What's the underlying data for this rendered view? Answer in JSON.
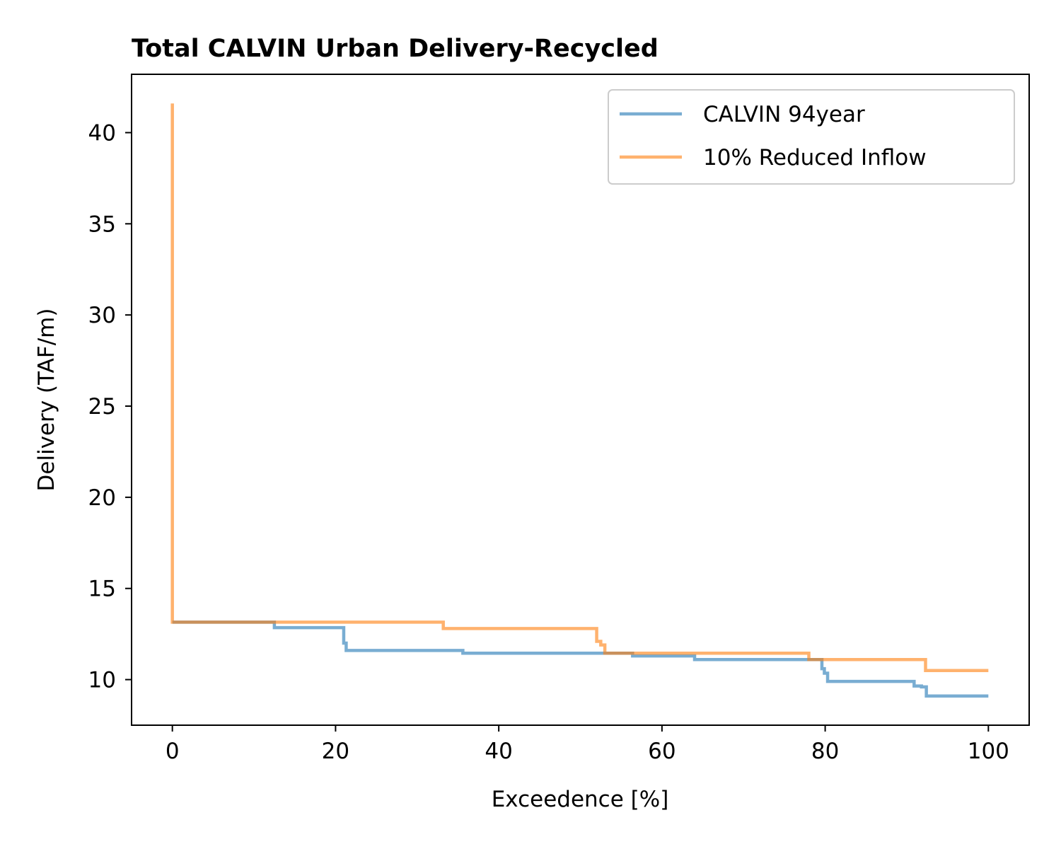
{
  "chart_data": {
    "type": "line",
    "step": true,
    "title": "Total CALVIN Urban Delivery-Recycled",
    "xlabel": "Exceedence [%]",
    "ylabel": "Delivery (TAF/m)",
    "xlim": [
      -5,
      105
    ],
    "ylim": [
      7.5,
      43.2
    ],
    "xticks": [
      0,
      20,
      40,
      60,
      80,
      100
    ],
    "yticks": [
      10,
      15,
      20,
      25,
      30,
      35,
      40
    ],
    "grid": false,
    "legend_position": "top-right",
    "series": [
      {
        "name": "CALVIN 94year",
        "color": "#1f77b4",
        "opacity": 0.6,
        "x": [
          0,
          12.5,
          12.5,
          21.0,
          21.0,
          21.3,
          21.3,
          35.6,
          35.6,
          56.4,
          56.4,
          64.0,
          64.0,
          79.6,
          79.6,
          79.9,
          79.9,
          80.3,
          80.3,
          90.9,
          90.9,
          91.8,
          91.8,
          92.4,
          92.4,
          100
        ],
        "y": [
          13.15,
          13.15,
          12.85,
          12.85,
          12.0,
          12.0,
          11.6,
          11.6,
          11.45,
          11.45,
          11.3,
          11.3,
          11.1,
          11.1,
          10.6,
          10.6,
          10.35,
          10.35,
          9.9,
          9.9,
          9.65,
          9.65,
          9.6,
          9.6,
          9.1,
          9.1
        ]
      },
      {
        "name": "10% Reduced Inflow",
        "color": "#ff7f0e",
        "opacity": 0.6,
        "x": [
          0,
          0,
          0.1,
          0.1,
          33.2,
          33.2,
          52.0,
          52.0,
          52.5,
          52.5,
          53.0,
          53.0,
          78.0,
          78.0,
          92.3,
          92.3,
          100
        ],
        "y": [
          41.6,
          13.15,
          13.15,
          13.15,
          13.15,
          12.8,
          12.8,
          12.1,
          12.1,
          11.9,
          11.9,
          11.45,
          11.45,
          11.1,
          11.1,
          10.5,
          10.5
        ]
      }
    ]
  }
}
